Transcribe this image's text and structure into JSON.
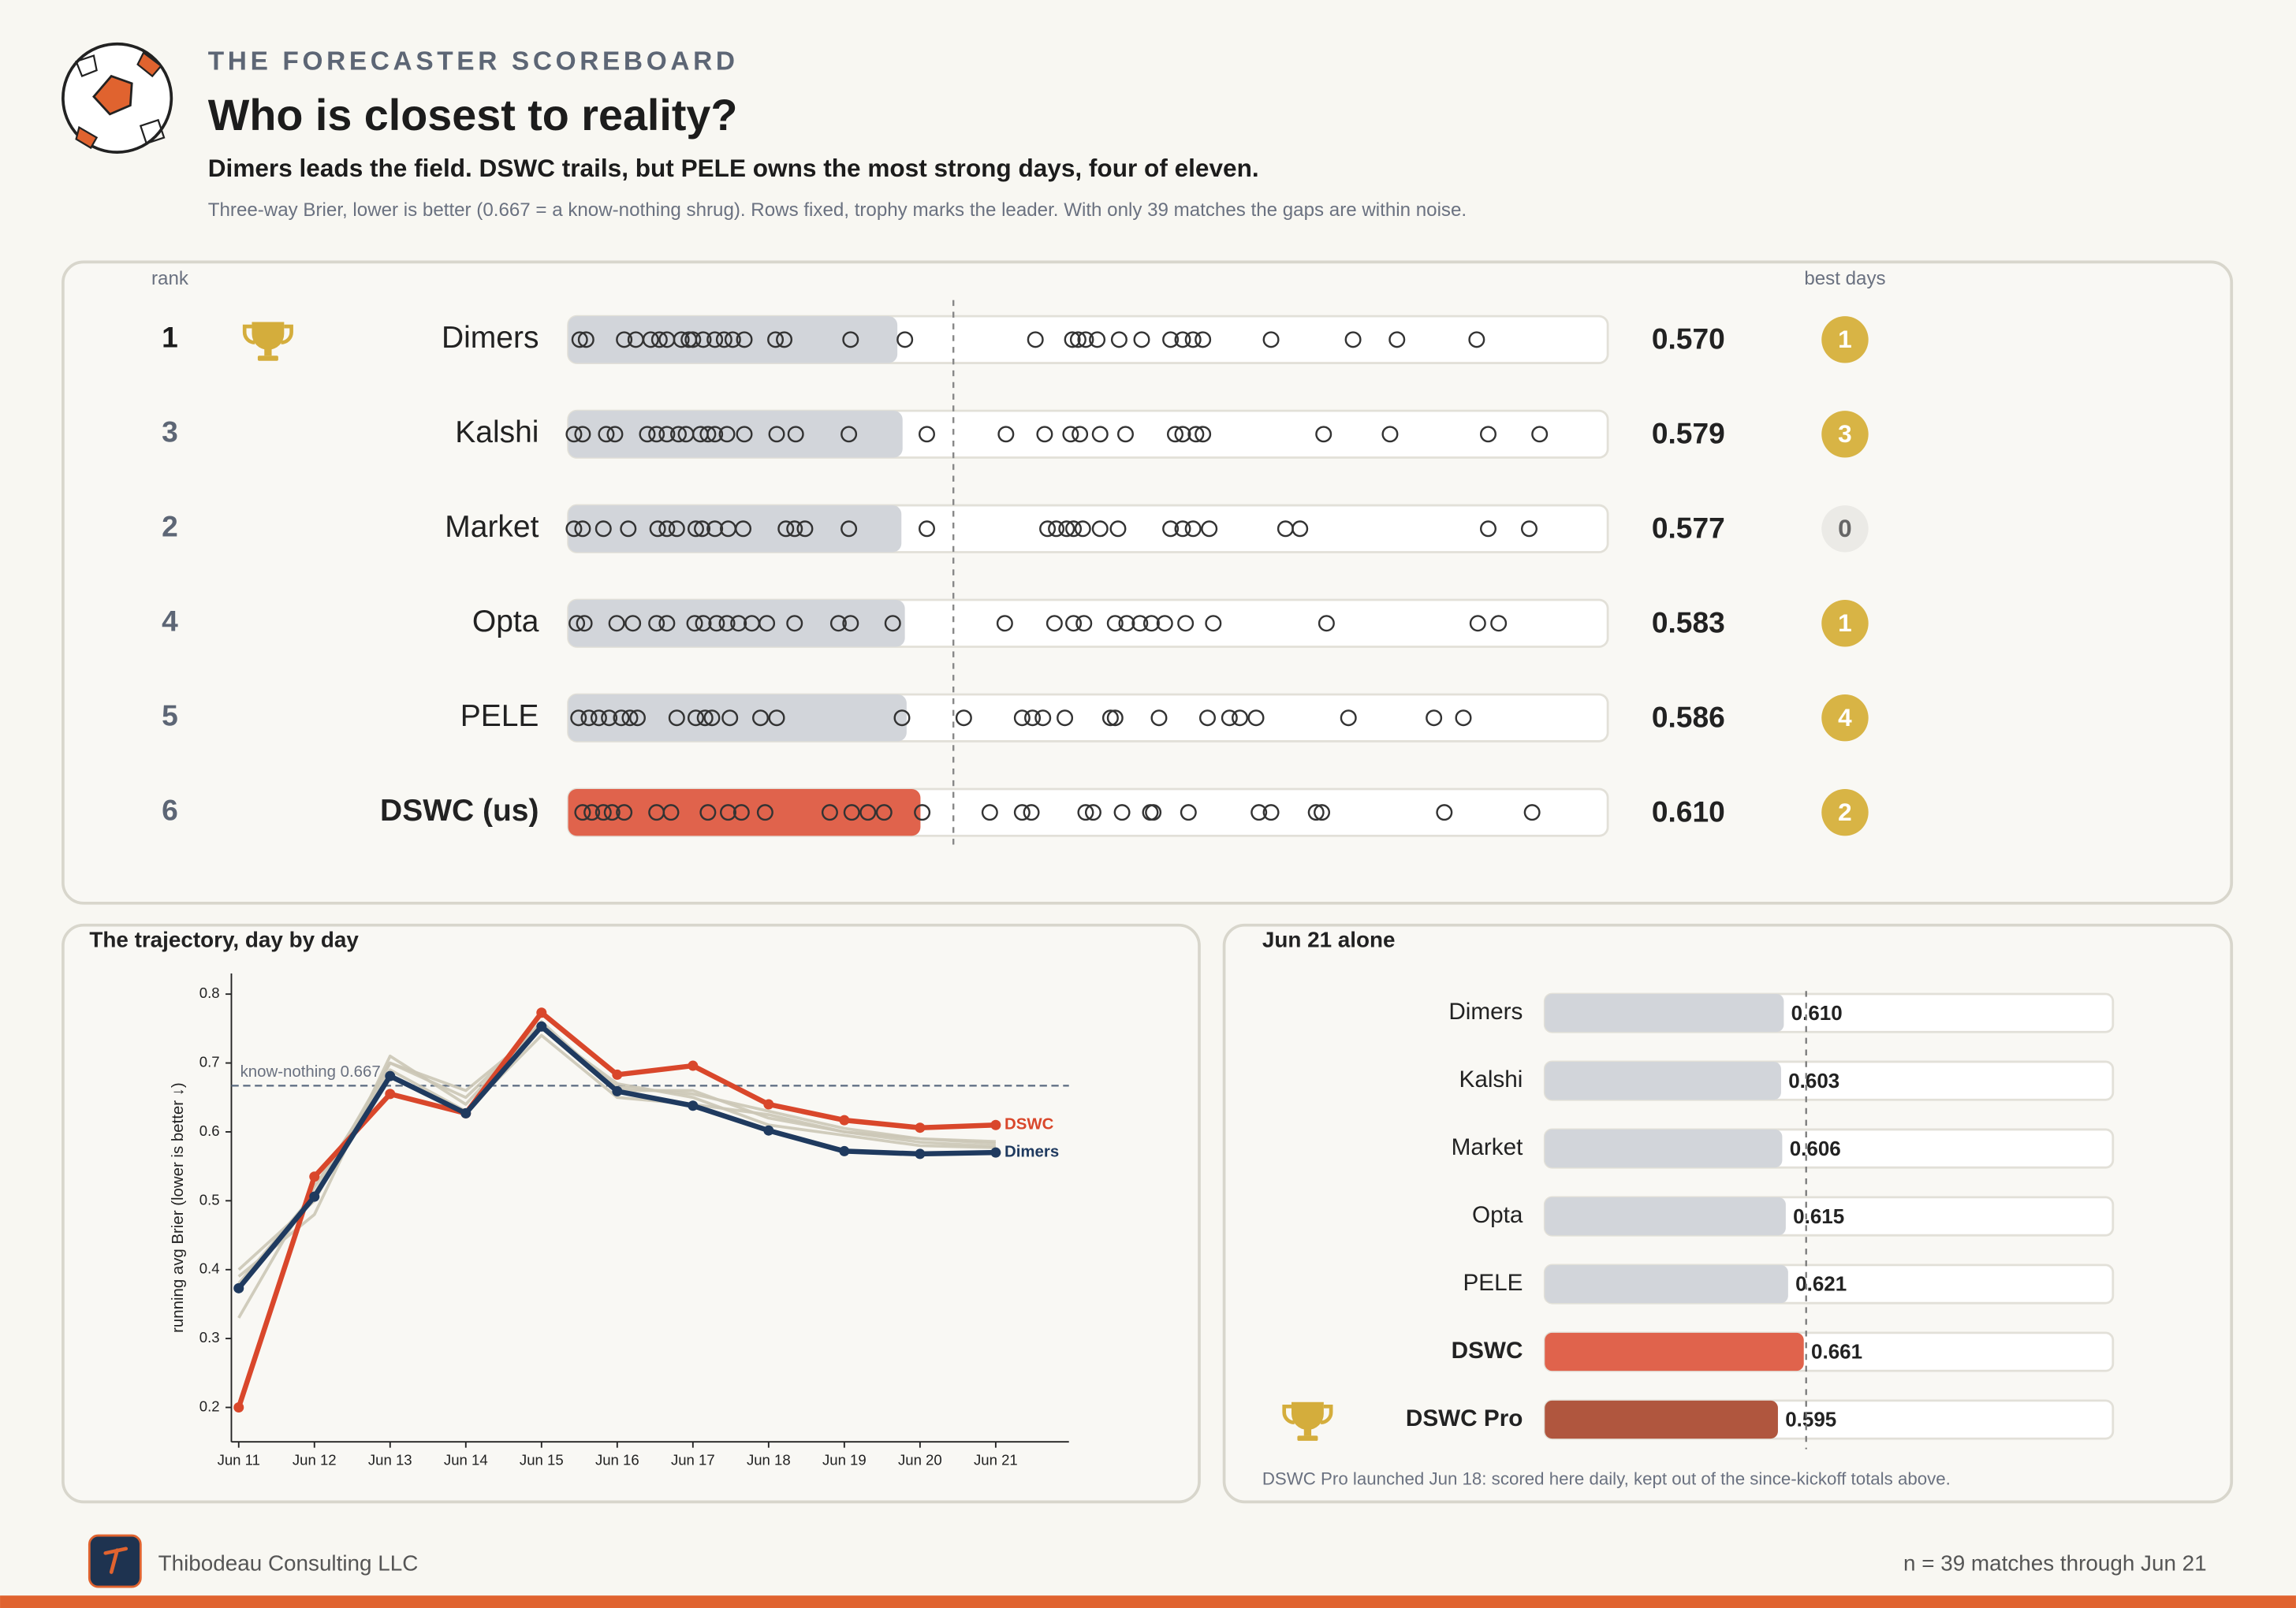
{
  "header": {
    "kicker": "THE FORECASTER SCOREBOARD",
    "title": "Who is closest to reality?",
    "subtitle": "Dimers leads the field. DSWC trails, but PELE owns the most strong days, four of eleven.",
    "note": "Three-way Brier, lower is better (0.667 = a know-nothing shrug). Rows fixed, trophy marks the leader. With only 39 matches the gaps are within noise."
  },
  "chart_data": [
    {
      "type": "dot-strip",
      "rank_header": "rank",
      "best_days_header": "best days",
      "xlim": [
        0,
        1.8
      ],
      "reference": 0.667,
      "trophy_index": 0,
      "rows": [
        {
          "name": "Dimers",
          "rank": 1,
          "score": 0.57,
          "score_label": "0.570",
          "best_days": 1,
          "color": "#d2d5da",
          "highlight": false,
          "matches": [
            0.02,
            0.031,
            0.097,
            0.117,
            0.143,
            0.158,
            0.171,
            0.196,
            0.209,
            0.216,
            0.234,
            0.254,
            0.27,
            0.285,
            0.305,
            0.359,
            0.374,
            0.489,
            0.583,
            0.809,
            0.873,
            0.883,
            0.896,
            0.916,
            0.954,
            0.993,
            1.043,
            1.064,
            1.082,
            1.099,
            1.217,
            1.359,
            1.435,
            1.573
          ]
        },
        {
          "name": "Kalshi",
          "rank": 3,
          "score": 0.579,
          "score_label": "0.579",
          "best_days": 3,
          "color": "#d2d5da",
          "highlight": false,
          "matches": [
            0.01,
            0.025,
            0.066,
            0.081,
            0.137,
            0.153,
            0.171,
            0.191,
            0.204,
            0.229,
            0.242,
            0.254,
            0.275,
            0.305,
            0.361,
            0.394,
            0.486,
            0.621,
            0.758,
            0.825,
            0.87,
            0.886,
            0.921,
            0.965,
            1.051,
            1.064,
            1.087,
            1.099,
            1.308,
            1.423,
            1.593,
            1.682
          ]
        },
        {
          "name": "Market",
          "rank": 2,
          "score": 0.577,
          "score_label": "0.577",
          "best_days": 0,
          "color": "#d2d5da",
          "highlight": false,
          "matches": [
            0.01,
            0.025,
            0.061,
            0.104,
            0.155,
            0.171,
            0.188,
            0.221,
            0.232,
            0.254,
            0.277,
            0.303,
            0.377,
            0.392,
            0.41,
            0.486,
            0.621,
            0.83,
            0.845,
            0.863,
            0.875,
            0.891,
            0.921,
            0.952,
            1.043,
            1.064,
            1.082,
            1.11,
            1.242,
            1.267,
            1.593,
            1.664
          ]
        },
        {
          "name": "Opta",
          "rank": 4,
          "score": 0.583,
          "score_label": "0.583",
          "best_days": 1,
          "color": "#d2d5da",
          "highlight": false,
          "matches": [
            0.015,
            0.028,
            0.084,
            0.112,
            0.153,
            0.171,
            0.219,
            0.234,
            0.257,
            0.275,
            0.295,
            0.318,
            0.344,
            0.392,
            0.468,
            0.489,
            0.562,
            0.756,
            0.842,
            0.875,
            0.893,
            0.947,
            0.967,
            0.99,
            1.01,
            1.033,
            1.069,
            1.117,
            1.313,
            1.575,
            1.611
          ]
        },
        {
          "name": "PELE",
          "rank": 5,
          "score": 0.586,
          "score_label": "0.586",
          "best_days": 4,
          "color": "#d2d5da",
          "highlight": false,
          "matches": [
            0.018,
            0.036,
            0.053,
            0.071,
            0.092,
            0.107,
            0.12,
            0.188,
            0.221,
            0.237,
            0.249,
            0.28,
            0.333,
            0.361,
            0.578,
            0.685,
            0.786,
            0.804,
            0.822,
            0.86,
            0.939,
            0.947,
            1.023,
            1.107,
            1.145,
            1.163,
            1.191,
            1.351,
            1.499,
            1.55
          ]
        },
        {
          "name": "DSWC (us)",
          "rank": 6,
          "score": 0.61,
          "score_label": "0.610",
          "best_days": 2,
          "color": "#e0634c",
          "highlight": true,
          "matches": [
            0.025,
            0.041,
            0.061,
            0.076,
            0.097,
            0.153,
            0.178,
            0.242,
            0.277,
            0.3,
            0.341,
            0.453,
            0.491,
            0.519,
            0.547,
            0.613,
            0.73,
            0.786,
            0.802,
            0.896,
            0.909,
            0.959,
            1.008,
            1.013,
            1.074,
            1.196,
            1.217,
            1.295,
            1.305,
            1.517,
            1.669
          ]
        }
      ]
    },
    {
      "type": "line",
      "title": "The trajectory, day by day",
      "y_label": "running avg Brier  (lower is better ↓)",
      "categories": [
        "Jun 11",
        "Jun 12",
        "Jun 13",
        "Jun 14",
        "Jun 15",
        "Jun 16",
        "Jun 17",
        "Jun 18",
        "Jun 19",
        "Jun 20",
        "Jun 21"
      ],
      "ylim": [
        0.15,
        0.83
      ],
      "yticks": [
        0.2,
        0.3,
        0.4,
        0.5,
        0.6,
        0.7,
        0.8
      ],
      "reference": 0.667,
      "reference_label": "know-nothing 0.667",
      "series": [
        {
          "color": "#cbc6b6",
          "values": [
            0.39,
            0.48,
            0.71,
            0.64,
            0.76,
            0.66,
            0.66,
            0.62,
            0.6,
            0.585,
            0.579
          ]
        },
        {
          "color": "#cbc6b6",
          "values": [
            0.4,
            0.5,
            0.7,
            0.66,
            0.75,
            0.67,
            0.65,
            0.61,
            0.595,
            0.58,
            0.577
          ]
        },
        {
          "color": "#cbc6b6",
          "values": [
            0.33,
            0.52,
            0.69,
            0.63,
            0.74,
            0.65,
            0.64,
            0.625,
            0.6,
            0.59,
            0.583
          ]
        },
        {
          "color": "#cbc6b6",
          "values": [
            0.38,
            0.51,
            0.7,
            0.65,
            0.755,
            0.665,
            0.655,
            0.63,
            0.605,
            0.59,
            0.586
          ]
        },
        {
          "name": "DSWC",
          "color": "#d9472b",
          "values": [
            0.2,
            0.535,
            0.655,
            0.627,
            0.773,
            0.683,
            0.696,
            0.64,
            0.617,
            0.606,
            0.61
          ]
        },
        {
          "name": "Dimers",
          "color": "#1f3a5f",
          "values": [
            0.373,
            0.506,
            0.681,
            0.627,
            0.753,
            0.659,
            0.638,
            0.602,
            0.572,
            0.568,
            0.57
          ]
        }
      ]
    },
    {
      "type": "hbar",
      "title": "Jun 21 alone",
      "categories": [
        "Dimers",
        "Kalshi",
        "Market",
        "Opta",
        "PELE",
        "DSWC",
        "DSWC Pro"
      ],
      "values": [
        0.61,
        0.603,
        0.606,
        0.615,
        0.621,
        0.661,
        0.595
      ],
      "value_labels": [
        "0.610",
        "0.603",
        "0.606",
        "0.615",
        "0.621",
        "0.661",
        "0.595"
      ],
      "colors": [
        "#d2d5da",
        "#d2d5da",
        "#d2d5da",
        "#d2d5da",
        "#d2d5da",
        "#e0634c",
        "#b0563e"
      ],
      "emphasis": [
        false,
        false,
        false,
        false,
        false,
        true,
        true
      ],
      "xlim": [
        0,
        1.45
      ],
      "reference": 0.667,
      "trophy_index": 6,
      "note": "DSWC Pro launched Jun 18: scored here daily, kept out of the since-kickoff totals above."
    }
  ],
  "footer": {
    "company": "Thibodeau Consulting LLC",
    "summary": "n = 39 matches through Jun 21"
  }
}
